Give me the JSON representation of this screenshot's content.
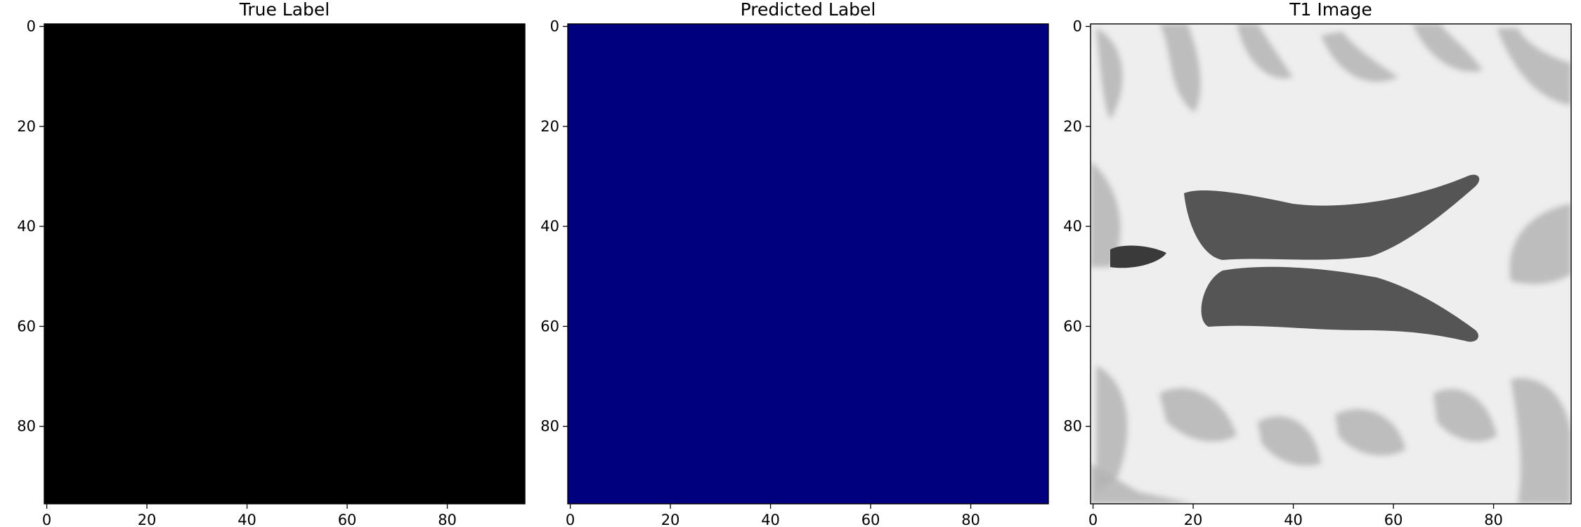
{
  "chart_data": [
    {
      "type": "heatmap",
      "title": "True Label",
      "colormap": "gray",
      "fill_color": "#000000",
      "image_size": [
        96,
        96
      ],
      "xlim": [
        0,
        95
      ],
      "ylim": [
        95,
        0
      ],
      "x_ticks": [
        0,
        20,
        40,
        60,
        80
      ],
      "y_ticks": [
        0,
        20,
        40,
        60,
        80
      ],
      "x_tick_labels": [
        "0",
        "20",
        "40",
        "60",
        "80"
      ],
      "y_tick_labels": [
        "0",
        "20",
        "40",
        "60",
        "80"
      ],
      "content": "uniform value (all background)"
    },
    {
      "type": "heatmap",
      "title": "Predicted Label",
      "colormap": "jet",
      "fill_color": "#00007f",
      "image_size": [
        96,
        96
      ],
      "xlim": [
        0,
        95
      ],
      "ylim": [
        95,
        0
      ],
      "x_ticks": [
        0,
        20,
        40,
        60,
        80
      ],
      "y_ticks": [
        0,
        20,
        40,
        60,
        80
      ],
      "x_tick_labels": [
        "0",
        "20",
        "40",
        "60",
        "80"
      ],
      "y_tick_labels": [
        "0",
        "20",
        "40",
        "60",
        "80"
      ],
      "content": "uniform value (all background)"
    },
    {
      "type": "heatmap",
      "title": "T1 Image",
      "colormap": "gray",
      "image_size": [
        96,
        96
      ],
      "xlim": [
        0,
        95
      ],
      "ylim": [
        95,
        0
      ],
      "x_ticks": [
        0,
        20,
        40,
        60,
        80
      ],
      "y_ticks": [
        0,
        20,
        40,
        60,
        80
      ],
      "x_tick_labels": [
        "0",
        "20",
        "40",
        "60",
        "80"
      ],
      "y_tick_labels": [
        "0",
        "20",
        "40",
        "60",
        "80"
      ],
      "content": "axial T1-weighted MRI slice showing butterfly-shaped lateral ventricles in the center, white matter and cortical sulci around",
      "colors": {
        "white_matter": "#eeeeee",
        "gray_matter": "#b4b4b4",
        "ventricle": "#555555",
        "deep": "#3a3a3a"
      }
    }
  ]
}
